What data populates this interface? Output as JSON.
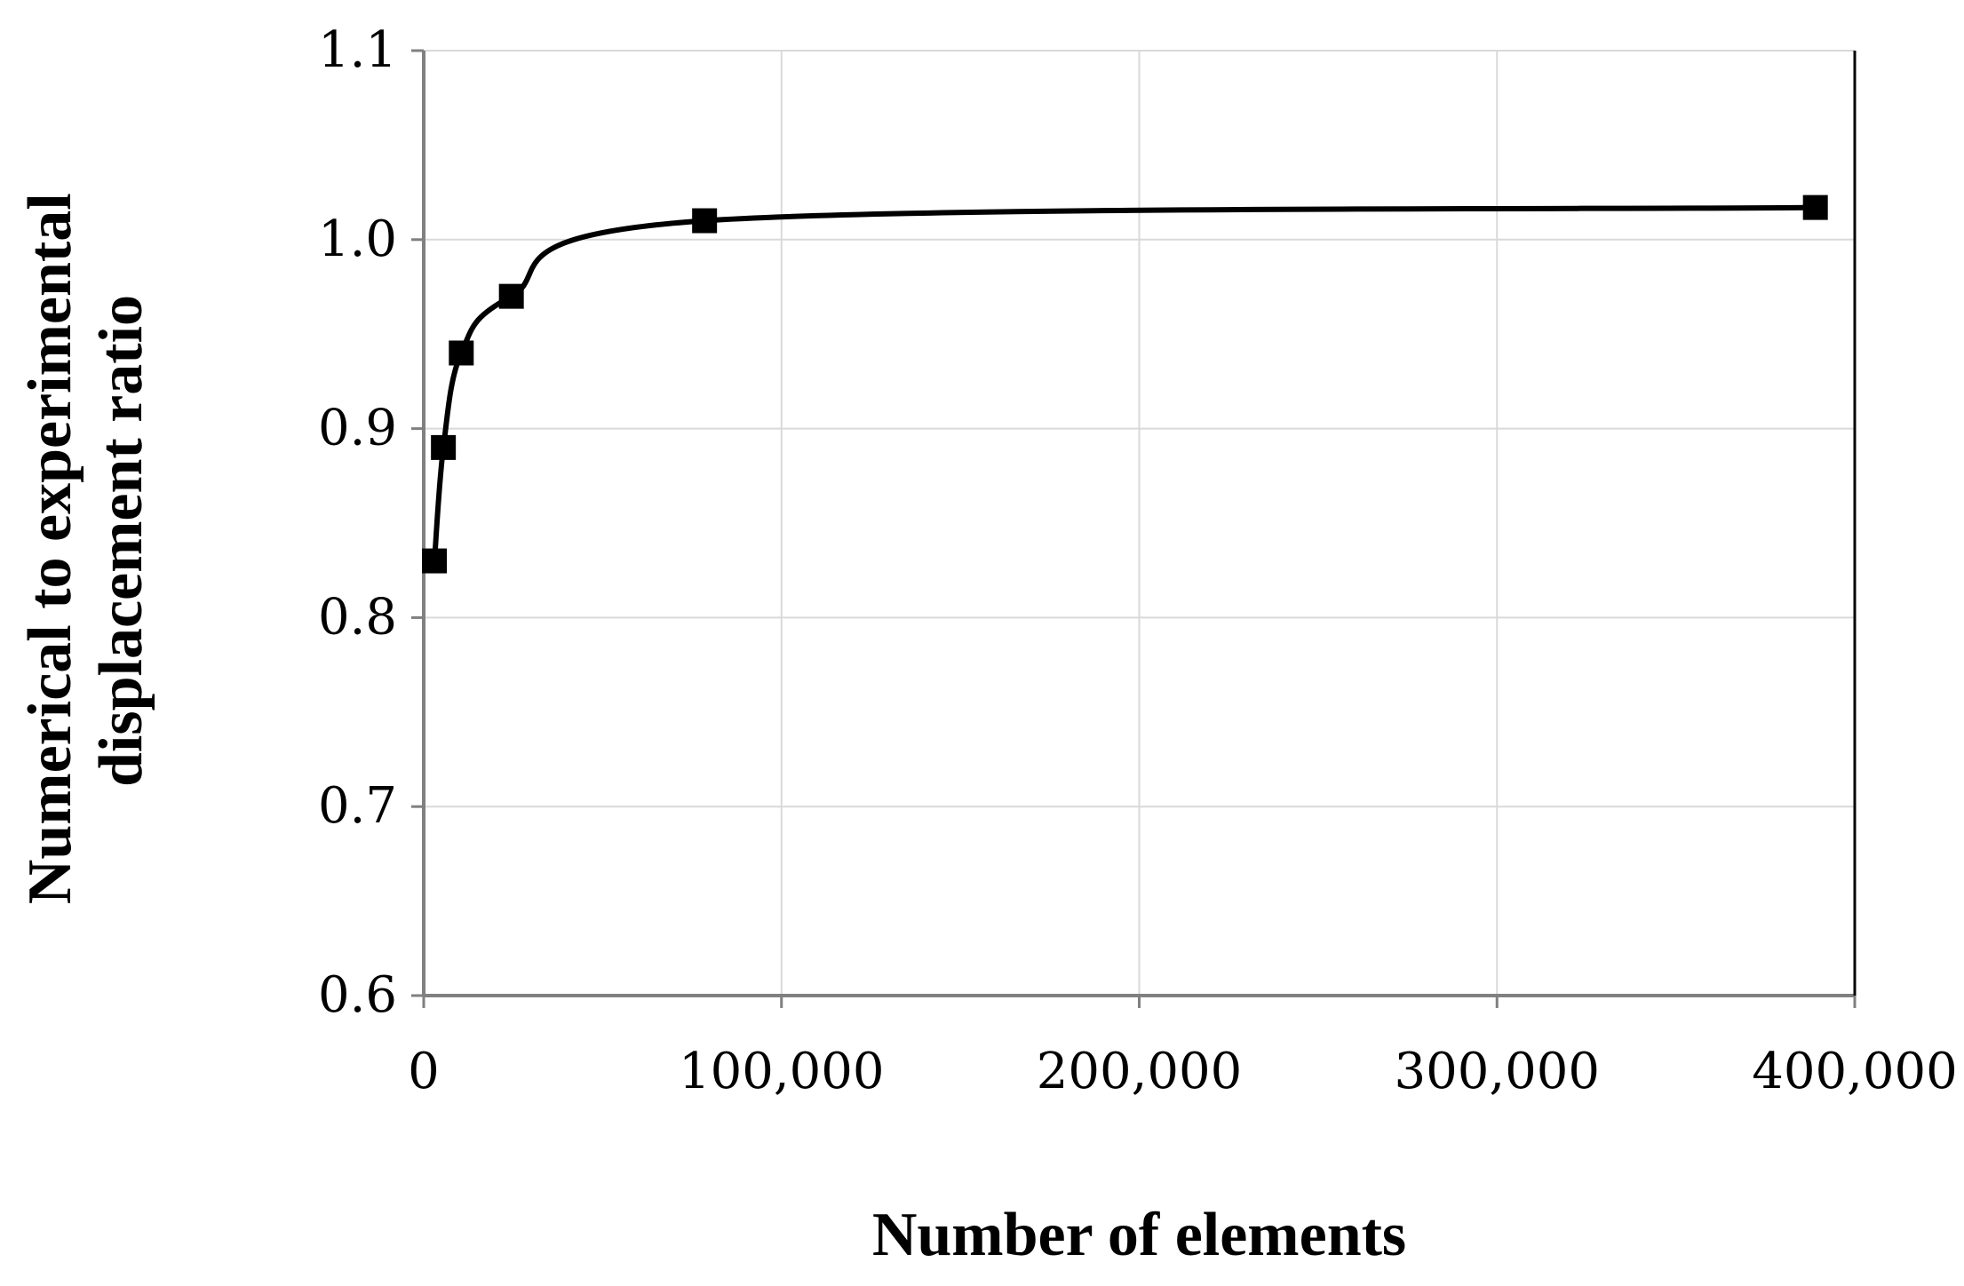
{
  "chart_data": {
    "type": "line",
    "title": "",
    "xlabel": "Number of elements",
    "ylabel_lines": [
      "Numerical to experimental",
      "displacement ratio"
    ],
    "xlim": [
      0,
      400000
    ],
    "ylim": [
      0.6,
      1.1
    ],
    "x_ticks": [
      0,
      100000,
      200000,
      300000,
      400000
    ],
    "x_tick_labels": [
      "0",
      "100,000",
      "200,000",
      "300,000",
      "400,000"
    ],
    "y_ticks": [
      0.6,
      0.7,
      0.8,
      0.9,
      1.0,
      1.1
    ],
    "y_tick_labels": [
      "0.6",
      "0.7",
      "0.8",
      "0.9",
      "1.0",
      "1.1"
    ],
    "grid": true,
    "legend": "none",
    "smooth": true,
    "marker": "square",
    "series": [
      {
        "x": [
          3000,
          5500,
          10500,
          24500,
          78500,
          389000
        ],
        "y": [
          0.83,
          0.89,
          0.94,
          0.97,
          1.01,
          1.017
        ],
        "color": "#000000"
      }
    ],
    "colors": {
      "line": "#000000",
      "grid": "#d9d9d9",
      "axis": "#808080"
    }
  }
}
